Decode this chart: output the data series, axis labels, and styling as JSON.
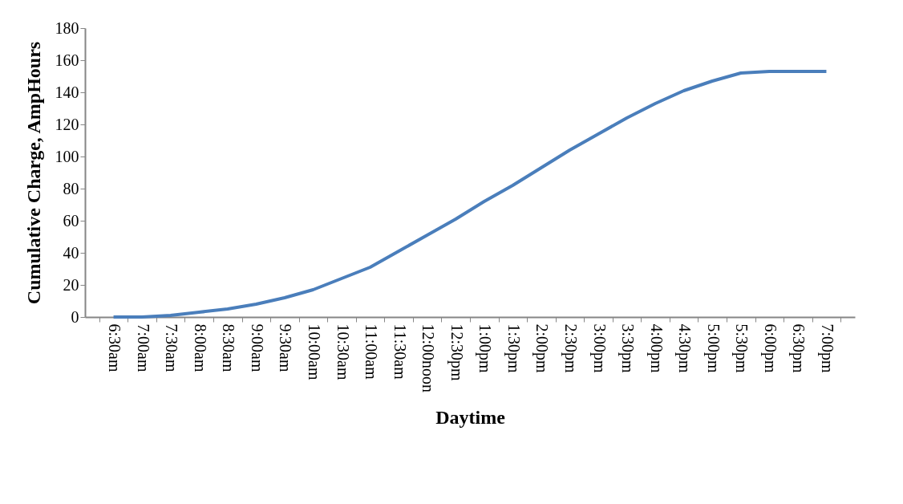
{
  "chart_data": {
    "type": "line",
    "xlabel": "Daytime",
    "ylabel": "Cumulative Charge, AmpHours",
    "categories": [
      "6:30am",
      "7:00am",
      "7:30am",
      "8:00am",
      "8:30am",
      "9:00am",
      "9:30am",
      "10:00am",
      "10:30am",
      "11:00am",
      "11:30am",
      "12:00noon",
      "12:30pm",
      "1:00pm",
      "1:30pm",
      "2:00pm",
      "2:30pm",
      "3:00pm",
      "3:30pm",
      "4:00pm",
      "4:30pm",
      "5:00pm",
      "5:30pm",
      "6:00pm",
      "6:30pm",
      "7:00pm"
    ],
    "series": [
      {
        "color": "#4a7ebb",
        "values": [
          0,
          0,
          1,
          3,
          5,
          8,
          12,
          17,
          24,
          31,
          41,
          51,
          61,
          72,
          82,
          93,
          104,
          114,
          124,
          133,
          141,
          147,
          152,
          153,
          153,
          153
        ]
      }
    ],
    "ylim": [
      0,
      180
    ],
    "yticks": [
      0,
      20,
      40,
      60,
      80,
      100,
      120,
      140,
      160,
      180
    ],
    "grid": false,
    "legend": false,
    "marker": "none",
    "line_style": "solid"
  }
}
